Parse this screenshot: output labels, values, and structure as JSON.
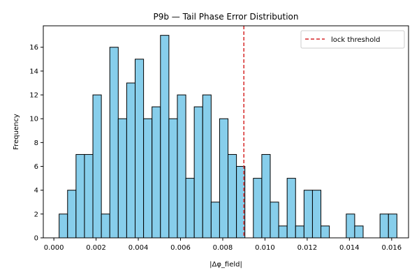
{
  "chart_data": {
    "type": "bar",
    "title": "P9b — Tail Phase Error Distribution",
    "xlabel": "|Δφ_field|",
    "ylabel": "Frequency",
    "xlim": [
      -0.0005,
      0.0168
    ],
    "ylim": [
      0,
      17.8
    ],
    "xticks": [
      0.0,
      0.002,
      0.004,
      0.006,
      0.008,
      0.01,
      0.012,
      0.014,
      0.016
    ],
    "xtick_labels": [
      "0.000",
      "0.002",
      "0.004",
      "0.006",
      "0.008",
      "0.010",
      "0.012",
      "0.014",
      "0.016"
    ],
    "yticks": [
      0,
      2,
      4,
      6,
      8,
      10,
      12,
      14,
      16
    ],
    "ytick_labels": [
      "0",
      "2",
      "4",
      "6",
      "8",
      "10",
      "12",
      "14",
      "16"
    ],
    "bins": {
      "start": 0.00025,
      "width": 0.0004,
      "counts": [
        2,
        4,
        7,
        7,
        12,
        2,
        16,
        10,
        13,
        15,
        10,
        11,
        17,
        10,
        12,
        5,
        11,
        12,
        3,
        10,
        7,
        6,
        0,
        5,
        7,
        3,
        1,
        5,
        1,
        4,
        4,
        1,
        0,
        0,
        2,
        1,
        0,
        0,
        2,
        2
      ]
    },
    "threshold": {
      "x": 0.009,
      "label": "lock threshold",
      "color": "#d62728"
    },
    "bar_color": "#87ceeb",
    "bar_edge_color": "#000000",
    "grid": false,
    "legend_position": "top-right"
  }
}
